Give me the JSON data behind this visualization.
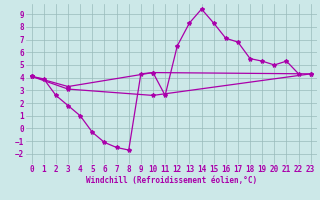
{
  "background_color": "#cce8e8",
  "grid_color": "#99bbbb",
  "line_color": "#aa00aa",
  "xlabel": "Windchill (Refroidissement éolien,°C)",
  "xlim": [
    -0.5,
    23.5
  ],
  "ylim": [
    -2.8,
    9.8
  ],
  "xticks": [
    0,
    1,
    2,
    3,
    4,
    5,
    6,
    7,
    8,
    9,
    10,
    11,
    12,
    13,
    14,
    15,
    16,
    17,
    18,
    19,
    20,
    21,
    22,
    23
  ],
  "yticks": [
    -2,
    -1,
    0,
    1,
    2,
    3,
    4,
    5,
    6,
    7,
    8,
    9
  ],
  "curve1_x": [
    0,
    1,
    2,
    3,
    4,
    5,
    6,
    7,
    8,
    9,
    10,
    11,
    12,
    13,
    14,
    15,
    16,
    17,
    18,
    19,
    20,
    21,
    22
  ],
  "curve1_y": [
    4.1,
    3.9,
    2.6,
    1.8,
    1.0,
    -0.3,
    -1.1,
    -1.5,
    -1.7,
    4.3,
    4.4,
    2.6,
    6.5,
    8.3,
    9.4,
    8.3,
    7.1,
    6.8,
    5.5,
    5.3,
    5.0,
    5.3,
    4.3
  ],
  "curve2_x": [
    0,
    3,
    10,
    23
  ],
  "curve2_y": [
    4.1,
    3.1,
    2.6,
    4.3
  ],
  "curve3_x": [
    0,
    3,
    10,
    23
  ],
  "curve3_y": [
    4.1,
    3.3,
    4.4,
    4.3
  ],
  "tick_fontsize": 5.5,
  "xlabel_fontsize": 5.5
}
